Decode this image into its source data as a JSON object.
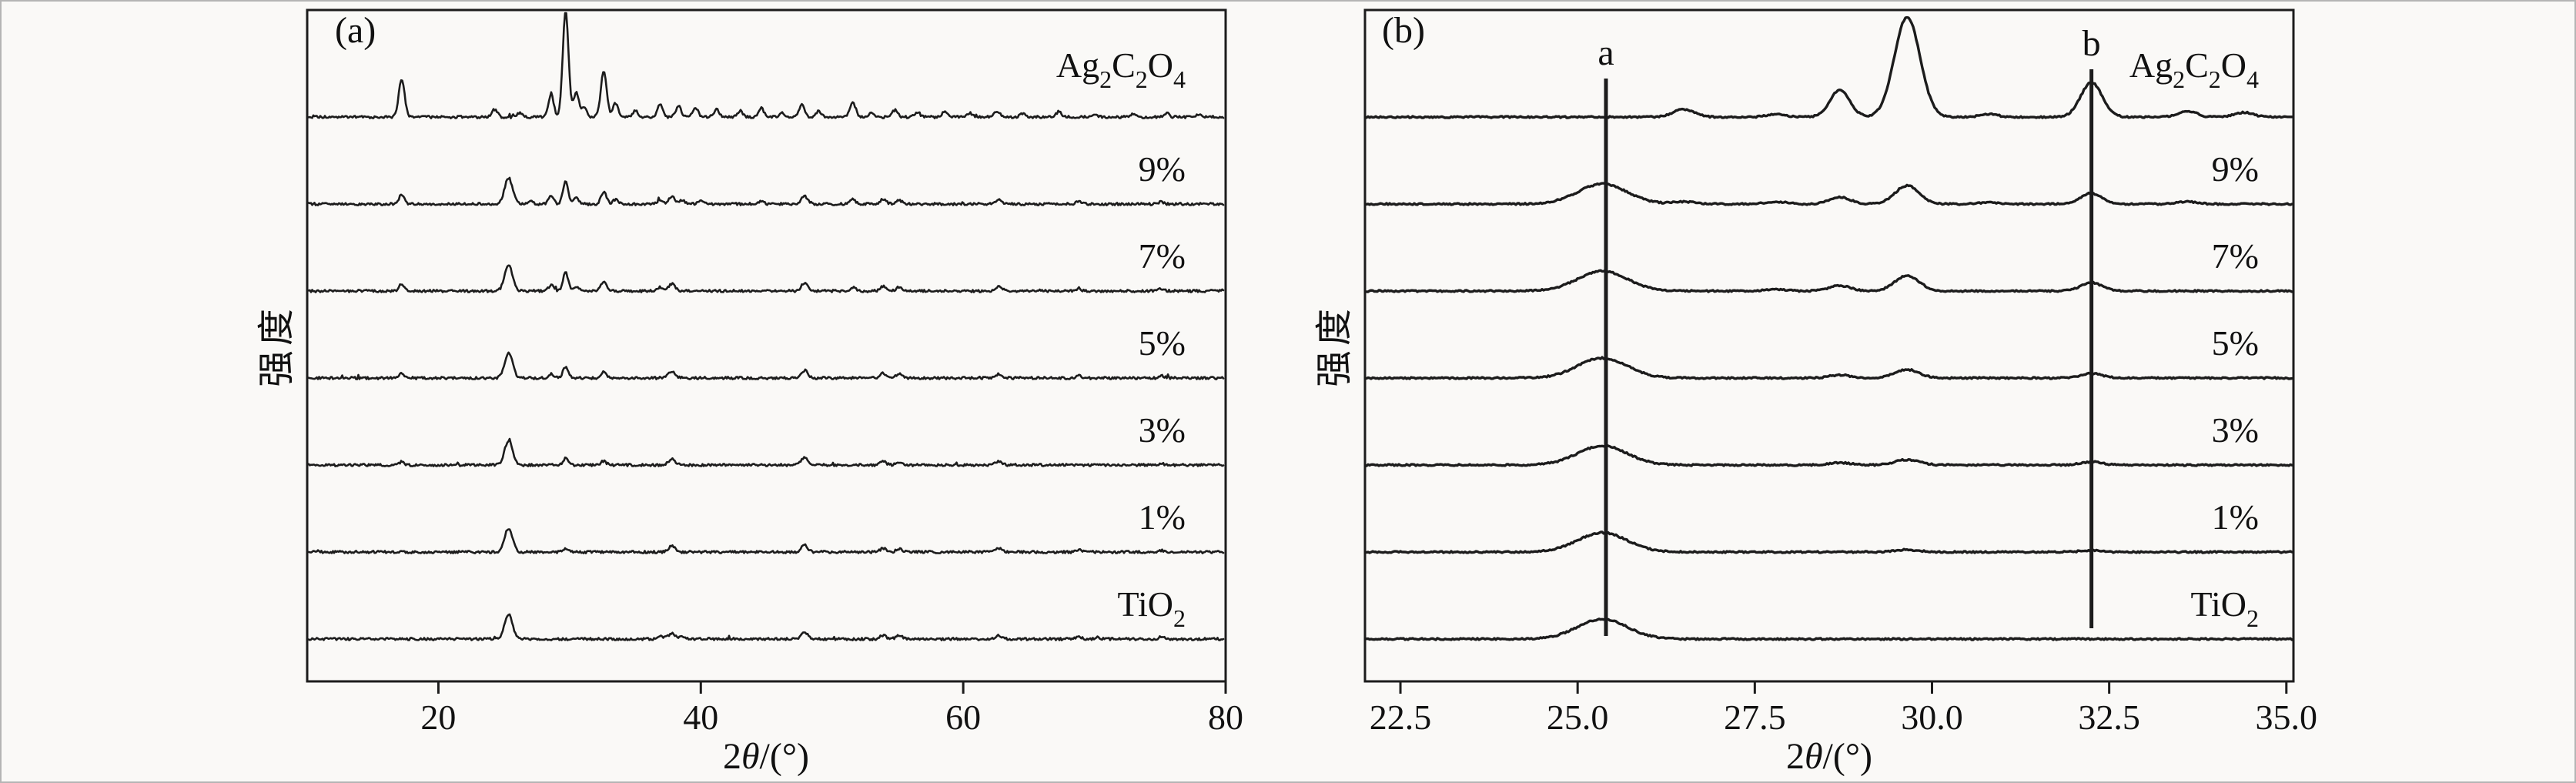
{
  "figure": {
    "bg": "#faf9f7",
    "border_color": "#b5b5b5",
    "line_color": "#1c1c1c",
    "text_color": "#111111"
  },
  "chart_data": [
    {
      "type": "line",
      "id": "a",
      "panel_tag": "(a)",
      "xlabel": "2θ/(°)",
      "xlabel_parts": {
        "prefix": "2",
        "theta": "θ",
        "suffix": "/(°)"
      },
      "ylabel": "强度",
      "xlim": [
        10,
        80
      ],
      "grid": false,
      "legend_position": "labels-right-inside",
      "intensity_units": "arbitrary",
      "xticks": [
        {
          "value": 20,
          "label": "20"
        },
        {
          "value": 40,
          "label": "40"
        },
        {
          "value": 60,
          "label": "60"
        },
        {
          "value": 80,
          "label": "80"
        }
      ],
      "series": [
        {
          "name": "Ag2C2O4",
          "label_parts": [
            [
              "Ag",
              0
            ],
            [
              "2",
              1
            ],
            [
              "C",
              0
            ],
            [
              "2",
              1
            ],
            [
              "O",
              0
            ],
            [
              "4",
              1
            ]
          ],
          "peaks_2theta_height_width": [
            [
              17.2,
              50,
              0.22
            ],
            [
              24.3,
              10,
              0.2
            ],
            [
              26.2,
              5,
              0.2
            ],
            [
              28.6,
              28,
              0.2
            ],
            [
              29.7,
              138,
              0.22
            ],
            [
              30.5,
              32,
              0.2
            ],
            [
              31.1,
              12,
              0.2
            ],
            [
              32.6,
              60,
              0.22
            ],
            [
              33.5,
              18,
              0.2
            ],
            [
              35.0,
              8,
              0.2
            ],
            [
              36.9,
              16,
              0.2
            ],
            [
              38.3,
              14,
              0.2
            ],
            [
              39.6,
              12,
              0.2
            ],
            [
              41.2,
              10,
              0.2
            ],
            [
              43.0,
              8,
              0.2
            ],
            [
              44.6,
              12,
              0.2
            ],
            [
              46.2,
              6,
              0.2
            ],
            [
              47.7,
              16,
              0.22
            ],
            [
              49.0,
              8,
              0.2
            ],
            [
              51.6,
              18,
              0.22
            ],
            [
              53.0,
              6,
              0.2
            ],
            [
              54.8,
              9,
              0.2
            ],
            [
              56.5,
              6,
              0.2
            ],
            [
              58.6,
              7,
              0.2
            ],
            [
              60.5,
              5,
              0.2
            ],
            [
              62.6,
              8,
              0.2
            ],
            [
              64.5,
              5,
              0.2
            ],
            [
              67.3,
              7,
              0.2
            ],
            [
              70.0,
              4,
              0.2
            ],
            [
              73.0,
              4,
              0.2
            ],
            [
              75.5,
              5,
              0.2
            ],
            [
              78.0,
              4,
              0.2
            ]
          ]
        },
        {
          "name": "9%",
          "label_parts": [
            [
              "9%",
              0
            ]
          ],
          "peaks_2theta_height_width": [
            [
              17.2,
              12,
              0.2
            ],
            [
              25.35,
              34,
              0.3
            ],
            [
              27.0,
              4,
              0.2
            ],
            [
              28.6,
              10,
              0.2
            ],
            [
              29.7,
              30,
              0.2
            ],
            [
              30.5,
              8,
              0.2
            ],
            [
              32.6,
              16,
              0.2
            ],
            [
              33.5,
              6,
              0.2
            ],
            [
              36.9,
              6,
              0.2
            ],
            [
              37.8,
              9,
              0.25
            ],
            [
              38.6,
              5,
              0.2
            ],
            [
              40.0,
              4,
              0.2
            ],
            [
              44.6,
              4,
              0.2
            ],
            [
              47.9,
              10,
              0.25
            ],
            [
              51.6,
              6,
              0.2
            ],
            [
              53.9,
              6,
              0.22
            ],
            [
              55.1,
              5,
              0.22
            ],
            [
              62.7,
              6,
              0.25
            ],
            [
              68.8,
              3,
              0.2
            ],
            [
              75.1,
              3,
              0.2
            ]
          ]
        },
        {
          "name": "7%",
          "label_parts": [
            [
              "7%",
              0
            ]
          ],
          "peaks_2theta_height_width": [
            [
              17.2,
              9,
              0.2
            ],
            [
              25.35,
              33,
              0.3
            ],
            [
              28.6,
              8,
              0.2
            ],
            [
              29.7,
              24,
              0.2
            ],
            [
              30.5,
              6,
              0.2
            ],
            [
              32.6,
              13,
              0.2
            ],
            [
              36.9,
              5,
              0.2
            ],
            [
              37.8,
              9,
              0.25
            ],
            [
              47.9,
              10,
              0.25
            ],
            [
              51.6,
              5,
              0.2
            ],
            [
              53.9,
              6,
              0.22
            ],
            [
              55.1,
              5,
              0.22
            ],
            [
              62.7,
              6,
              0.25
            ],
            [
              68.8,
              3,
              0.2
            ],
            [
              75.1,
              3,
              0.2
            ]
          ]
        },
        {
          "name": "5%",
          "label_parts": [
            [
              "5%",
              0
            ]
          ],
          "peaks_2theta_height_width": [
            [
              17.2,
              6,
              0.2
            ],
            [
              25.35,
              33,
              0.3
            ],
            [
              28.6,
              5,
              0.2
            ],
            [
              29.7,
              15,
              0.2
            ],
            [
              32.6,
              8,
              0.2
            ],
            [
              37.8,
              9,
              0.25
            ],
            [
              47.9,
              10,
              0.25
            ],
            [
              53.9,
              6,
              0.22
            ],
            [
              55.1,
              5,
              0.22
            ],
            [
              62.7,
              5,
              0.25
            ],
            [
              68.8,
              3,
              0.2
            ],
            [
              75.1,
              3,
              0.2
            ]
          ]
        },
        {
          "name": "3%",
          "label_parts": [
            [
              "3%",
              0
            ]
          ],
          "peaks_2theta_height_width": [
            [
              17.2,
              4,
              0.2
            ],
            [
              25.35,
              32,
              0.3
            ],
            [
              29.7,
              9,
              0.2
            ],
            [
              32.6,
              5,
              0.2
            ],
            [
              37.8,
              8,
              0.25
            ],
            [
              47.9,
              9,
              0.25
            ],
            [
              53.9,
              5,
              0.22
            ],
            [
              55.1,
              4,
              0.22
            ],
            [
              62.7,
              5,
              0.25
            ],
            [
              75.1,
              2,
              0.2
            ]
          ]
        },
        {
          "name": "1%",
          "label_parts": [
            [
              "1%",
              0
            ]
          ],
          "peaks_2theta_height_width": [
            [
              25.35,
              31,
              0.3
            ],
            [
              29.7,
              4,
              0.2
            ],
            [
              37.8,
              8,
              0.25
            ],
            [
              47.9,
              9,
              0.25
            ],
            [
              53.9,
              5,
              0.22
            ],
            [
              55.1,
              4,
              0.22
            ],
            [
              62.7,
              5,
              0.25
            ],
            [
              68.8,
              3,
              0.2
            ],
            [
              75.1,
              2,
              0.2
            ]
          ]
        },
        {
          "name": "TiO2",
          "label_parts": [
            [
              "TiO",
              0
            ],
            [
              "2",
              1
            ]
          ],
          "peaks_2theta_height_width": [
            [
              25.35,
              32,
              0.3
            ],
            [
              36.95,
              4,
              0.2
            ],
            [
              37.8,
              8,
              0.25
            ],
            [
              38.6,
              3,
              0.2
            ],
            [
              47.9,
              9,
              0.25
            ],
            [
              53.9,
              5,
              0.22
            ],
            [
              55.1,
              5,
              0.22
            ],
            [
              62.7,
              5,
              0.25
            ],
            [
              68.8,
              3,
              0.2
            ],
            [
              70.3,
              2,
              0.2
            ],
            [
              75.1,
              3,
              0.2
            ]
          ]
        }
      ]
    },
    {
      "type": "line",
      "id": "b",
      "panel_tag": "(b)",
      "xlabel": "2θ/(°)",
      "xlabel_parts": {
        "prefix": "2",
        "theta": "θ",
        "suffix": "/(°)"
      },
      "ylabel": "强度",
      "xlim": [
        22.5,
        35.0
      ],
      "grid": false,
      "legend_position": "labels-right-inside",
      "intensity_units": "arbitrary",
      "annotations": [
        {
          "label": "a",
          "x": 25.4
        },
        {
          "label": "b",
          "x": 32.25
        }
      ],
      "xticks": [
        {
          "value": 22.5,
          "label": "22.5"
        },
        {
          "value": 25.0,
          "label": "25.0"
        },
        {
          "value": 27.5,
          "label": "27.5"
        },
        {
          "value": 30.0,
          "label": "30.0"
        },
        {
          "value": 32.5,
          "label": "32.5"
        },
        {
          "value": 35.0,
          "label": "35.0"
        }
      ],
      "series": [
        {
          "name": "Ag2C2O4",
          "label_parts": [
            [
              "Ag",
              0
            ],
            [
              "2",
              1
            ],
            [
              "C",
              0
            ],
            [
              "2",
              1
            ],
            [
              "O",
              0
            ],
            [
              "4",
              1
            ]
          ],
          "peaks_2theta_height_width": [
            [
              26.5,
              10,
              0.15
            ],
            [
              27.8,
              4,
              0.13
            ],
            [
              28.7,
              35,
              0.14
            ],
            [
              29.65,
              130,
              0.18
            ],
            [
              30.8,
              4,
              0.12
            ],
            [
              32.25,
              45,
              0.15
            ],
            [
              33.6,
              8,
              0.13
            ],
            [
              34.4,
              6,
              0.13
            ]
          ]
        },
        {
          "name": "9%",
          "label_parts": [
            [
              "9%",
              0
            ]
          ],
          "peaks_2theta_height_width": [
            [
              25.35,
              26,
              0.35
            ],
            [
              26.5,
              3,
              0.15
            ],
            [
              27.8,
              3,
              0.15
            ],
            [
              28.7,
              9,
              0.15
            ],
            [
              29.65,
              24,
              0.17
            ],
            [
              30.8,
              2,
              0.12
            ],
            [
              32.25,
              14,
              0.15
            ],
            [
              33.6,
              3,
              0.13
            ]
          ]
        },
        {
          "name": "7%",
          "label_parts": [
            [
              "7%",
              0
            ]
          ],
          "peaks_2theta_height_width": [
            [
              25.35,
              26,
              0.35
            ],
            [
              27.8,
              2,
              0.15
            ],
            [
              28.7,
              7,
              0.15
            ],
            [
              29.65,
              20,
              0.17
            ],
            [
              32.25,
              11,
              0.15
            ]
          ]
        },
        {
          "name": "5%",
          "label_parts": [
            [
              "5%",
              0
            ]
          ],
          "peaks_2theta_height_width": [
            [
              25.35,
              26,
              0.35
            ],
            [
              28.7,
              4,
              0.15
            ],
            [
              29.65,
              11,
              0.17
            ],
            [
              32.25,
              6,
              0.15
            ]
          ]
        },
        {
          "name": "3%",
          "label_parts": [
            [
              "3%",
              0
            ]
          ],
          "peaks_2theta_height_width": [
            [
              25.35,
              25,
              0.35
            ],
            [
              28.7,
              3,
              0.15
            ],
            [
              29.65,
              7,
              0.17
            ],
            [
              32.25,
              4,
              0.15
            ]
          ]
        },
        {
          "name": "1%",
          "label_parts": [
            [
              "1%",
              0
            ]
          ],
          "peaks_2theta_height_width": [
            [
              25.35,
              25,
              0.35
            ],
            [
              29.65,
              3,
              0.17
            ],
            [
              32.25,
              2,
              0.15
            ]
          ]
        },
        {
          "name": "TiO2",
          "label_parts": [
            [
              "TiO",
              0
            ],
            [
              "2",
              1
            ]
          ],
          "peaks_2theta_height_width": [
            [
              25.35,
              26,
              0.35
            ]
          ]
        }
      ]
    }
  ]
}
